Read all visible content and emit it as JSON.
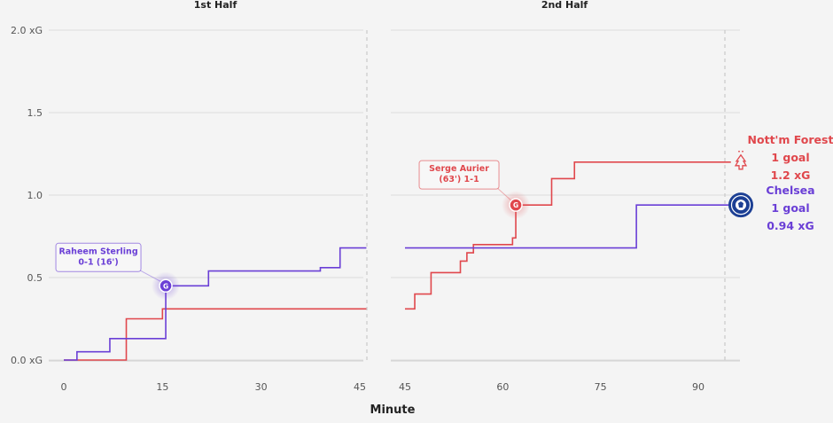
{
  "chart_data": {
    "type": "line",
    "step": true,
    "xlabel": "Minute",
    "ylim": [
      0,
      2.0
    ],
    "y_ticks": [
      "0.0 xG",
      "0.5",
      "1.0",
      "1.5",
      "2.0 xG"
    ],
    "y_tick_values": [
      0,
      0.5,
      1.0,
      1.5,
      2.0
    ],
    "grid": true,
    "panels": [
      {
        "title": "1st Half",
        "xlim": [
          0,
          46
        ],
        "x_ticks": [
          0,
          15,
          30,
          45
        ],
        "series": [
          {
            "name": "Nott'm Forest",
            "color": "#e0474c",
            "x": [
              0,
              9.5,
              15,
              46
            ],
            "y": [
              0,
              0.25,
              0.31,
              0.31
            ]
          },
          {
            "name": "Chelsea",
            "color": "#6a3fd6",
            "x": [
              0,
              2,
              7,
              15.5,
              22,
              39,
              42,
              46
            ],
            "y": [
              0,
              0.05,
              0.13,
              0.45,
              0.54,
              0.56,
              0.68,
              0.68
            ]
          }
        ],
        "annotations": [
          {
            "series": "Chelsea",
            "x": 15.5,
            "y": 0.45,
            "marker": "G",
            "lines": [
              "Raheem Sterling",
              "0-1 (16')"
            ]
          }
        ]
      },
      {
        "title": "2nd Half",
        "xlim": [
          45,
          96
        ],
        "x_ticks": [
          45,
          60,
          75,
          90
        ],
        "series": [
          {
            "name": "Nott'm Forest",
            "color": "#e0474c",
            "x": [
              45,
              46.5,
              49,
              53.5,
              54.5,
              55.5,
              61.5,
              62,
              67.5,
              71,
              95
            ],
            "y": [
              0.31,
              0.4,
              0.53,
              0.6,
              0.65,
              0.7,
              0.74,
              0.94,
              1.1,
              1.2,
              1.2
            ]
          },
          {
            "name": "Chelsea",
            "color": "#6a3fd6",
            "x": [
              45,
              80.5,
              95
            ],
            "y": [
              0.68,
              0.94,
              0.94
            ]
          }
        ],
        "annotations": [
          {
            "series": "Nott'm Forest",
            "x": 62,
            "y": 0.94,
            "marker": "G",
            "lines": [
              "Serge Aurier",
              "(63') 1-1"
            ]
          }
        ]
      }
    ],
    "teams": [
      {
        "name": "Nott'm Forest",
        "goals": "1 goal",
        "xg": "1.2 xG",
        "color": "#e0474c",
        "crest": "nottm-forest-crest"
      },
      {
        "name": "Chelsea",
        "goals": "1 goal",
        "xg": "0.94 xG",
        "color": "#6a3fd6",
        "crest": "chelsea-crest"
      }
    ]
  }
}
